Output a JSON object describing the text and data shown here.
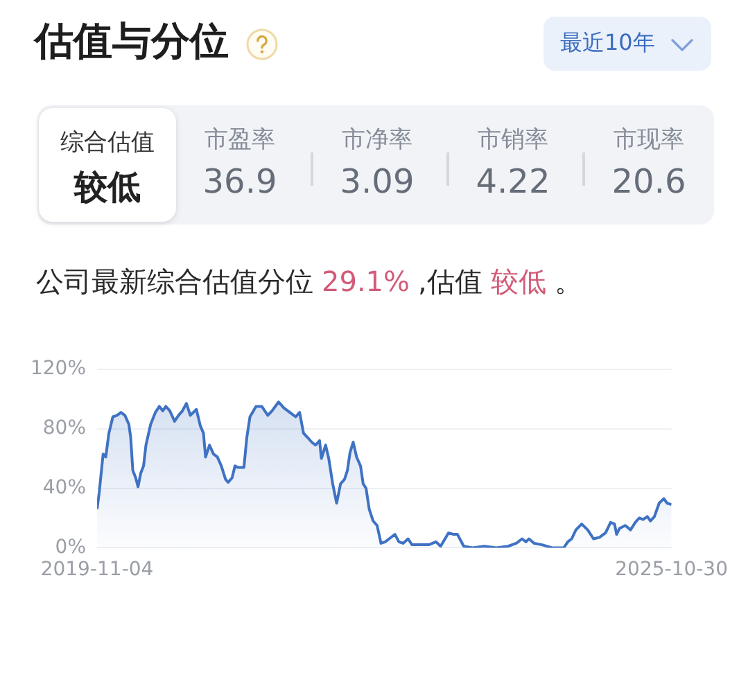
{
  "chart_data": [
    {
      "type": "other",
      "title": "估值与分位",
      "annotations": [
        "最近10年",
        "综合估值",
        "较低",
        "市盈率",
        "36.9",
        "市净率",
        "3.09",
        "市销率",
        "4.22",
        "市现率",
        "20.6",
        "公司最新综合估值分位",
        "29.1%",
        ",估值",
        "较低",
        "。"
      ]
    },
    {
      "type": "area",
      "color": "#3f72c3",
      "x": [
        "2019-11-04",
        "2019-11-12",
        "2019-11-27",
        "2019-12-07",
        "2019-12-19",
        "2020-01-03",
        "2020-01-19",
        "2020-02-03",
        "2020-02-18",
        "2020-03-04",
        "2020-03-11",
        "2020-03-19",
        "2020-03-30",
        "2020-04-08",
        "2020-04-18",
        "2020-04-29",
        "2020-05-08",
        "2020-05-26",
        "2020-06-13",
        "2020-06-28",
        "2020-07-11",
        "2020-07-23",
        "2020-08-07",
        "2020-08-25",
        "2020-09-09",
        "2020-09-24",
        "2020-10-09",
        "2020-10-24",
        "2020-11-16",
        "2020-12-01",
        "2020-12-13",
        "2020-12-21",
        "2021-01-05",
        "2021-01-20",
        "2021-02-04",
        "2021-02-19",
        "2021-03-07",
        "2021-03-17",
        "2021-04-01",
        "2021-04-12",
        "2021-04-24",
        "2021-05-16",
        "2021-05-27",
        "2021-06-08",
        "2021-07-01",
        "2021-07-23",
        "2021-08-15",
        "2021-08-31",
        "2021-09-25",
        "2021-10-15",
        "2021-11-07",
        "2021-11-29",
        "2021-12-14",
        "2021-12-29",
        "2022-01-14",
        "2022-01-29",
        "2022-02-13",
        "2022-02-28",
        "2022-03-07",
        "2022-03-23",
        "2022-04-04",
        "2022-04-19",
        "2022-05-04",
        "2022-05-19",
        "2022-06-03",
        "2022-06-14",
        "2022-06-24",
        "2022-07-06",
        "2022-07-19",
        "2022-08-03",
        "2022-08-13",
        "2022-08-24",
        "2022-09-05",
        "2022-09-20",
        "2022-10-05",
        "2022-10-20",
        "2022-11-05",
        "2022-11-20",
        "2022-12-12",
        "2022-12-27",
        "2023-01-12",
        "2023-01-31",
        "2023-02-15",
        "2023-03-21",
        "2023-04-20",
        "2023-05-17",
        "2023-06-04",
        "2023-07-04",
        "2023-07-23",
        "2023-08-07",
        "2023-08-31",
        "2023-10-03",
        "2023-11-18",
        "2024-01-02",
        "2024-02-16",
        "2024-03-18",
        "2024-04-09",
        "2024-04-24",
        "2024-05-05",
        "2024-05-25",
        "2024-06-24",
        "2024-08-01",
        "2024-09-15",
        "2024-09-30",
        "2024-10-15",
        "2024-10-31",
        "2024-11-22",
        "2024-12-15",
        "2025-01-06",
        "2025-01-29",
        "2025-02-21",
        "2025-03-12",
        "2025-03-27",
        "2025-04-04",
        "2025-04-15",
        "2025-05-07",
        "2025-05-27",
        "2025-06-14",
        "2025-06-29",
        "2025-07-14",
        "2025-07-30",
        "2025-08-11",
        "2025-08-26",
        "2025-09-13",
        "2025-10-01",
        "2025-10-13",
        "2025-10-30"
      ],
      "values": [
        26,
        37,
        63,
        61,
        77,
        88,
        89,
        91,
        89,
        83,
        74,
        52,
        47,
        41,
        50,
        55,
        69,
        83,
        91,
        95,
        92,
        95,
        92,
        85,
        89,
        92,
        97,
        89,
        93,
        82,
        77,
        61,
        69,
        63,
        61,
        55,
        46,
        44,
        47,
        55,
        54,
        54,
        74,
        88,
        95,
        95,
        89,
        92,
        98,
        94,
        91,
        88,
        91,
        77,
        74,
        71,
        69,
        72,
        60,
        69,
        60,
        43,
        30,
        43,
        46,
        52,
        64,
        71,
        61,
        55,
        43,
        40,
        26,
        18,
        15,
        3,
        4,
        6,
        9,
        4,
        3,
        6,
        2,
        2,
        2,
        4,
        1,
        10,
        9,
        9,
        1,
        0,
        1,
        0,
        1,
        3,
        6,
        4,
        6,
        3,
        2,
        0,
        0,
        4,
        6,
        12,
        16,
        12,
        6,
        7,
        10,
        17,
        16,
        9,
        13,
        15,
        12,
        17,
        20,
        19,
        21,
        18,
        21,
        30,
        33,
        30,
        29
      ],
      "xlim": [
        "2019-11-04",
        "2025-10-30"
      ],
      "xticks": [
        "2019-11-04",
        "2025-10-30"
      ],
      "ylim": [
        0,
        120
      ],
      "yticks": [
        {
          "value": 0,
          "label": "0%"
        },
        {
          "value": 40,
          "label": "40%"
        },
        {
          "value": 80,
          "label": "80%"
        },
        {
          "value": 120,
          "label": "120%"
        }
      ],
      "grid": "y"
    }
  ]
}
